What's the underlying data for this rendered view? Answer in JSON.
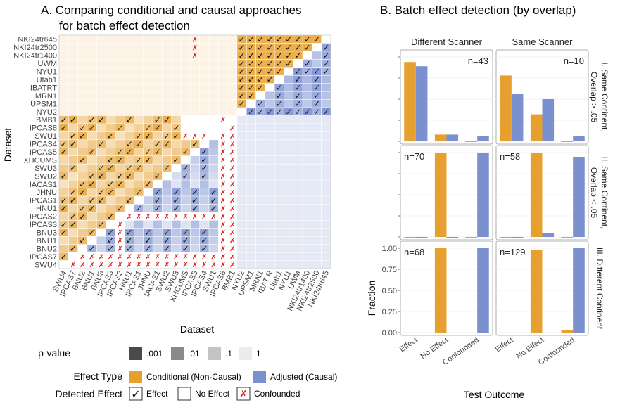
{
  "colors": {
    "conditional": "#E5A02F",
    "adjusted": "#7B90CF",
    "confounded_mark": "#D62020",
    "panel_border": "#9a9a9a",
    "grid": "#e6e6e6"
  },
  "panelA": {
    "title_line1": "A. Comparing conditional and causal approaches",
    "title_line2": "for batch effect detection",
    "xlabel": "Dataset",
    "ylabel": "Dataset",
    "legend": {
      "pvalue_title": "p-value",
      "pvalue_levels": [
        ".001",
        ".01",
        ".1",
        "1"
      ],
      "effect_type_title": "Effect Type",
      "effect_types": [
        "Conditional (Non-Causal)",
        "Adjusted (Causal)"
      ],
      "detected_title": "Detected Effect",
      "detected_items": [
        "Effect",
        "No Effect",
        "Confounded"
      ]
    }
  },
  "chart_data": [
    {
      "type": "heatmap",
      "title": "A. Comparing conditional and causal approaches for batch effect detection",
      "xlabel": "Dataset",
      "ylabel": "Dataset",
      "datasets": [
        "SWU4",
        "IPCAS7",
        "BNU2",
        "BNU1",
        "BNU3",
        "IPCAS3",
        "IPCAS2",
        "HNU1",
        "IPCAS1",
        "JHNU",
        "IACAS1",
        "SWU2",
        "SWU3",
        "XHCUMS",
        "IPCAS5",
        "IPCAS4",
        "SWU1",
        "IPCAS8",
        "BMB1",
        "NYU2",
        "UPSM1",
        "MRN1",
        "IBATRT",
        "Utah1",
        "NYU1",
        "UWM",
        "NKI24tr1400",
        "NKI24tr2500",
        "NKI24tr645"
      ],
      "x_tick_labels": [
        "SWU4",
        "IPCAS7",
        "BNU2",
        "BNU1",
        "BNU3",
        "IPCAS3",
        "IPCAS2",
        "HNU1",
        "IPCAS1",
        "JHNU",
        "IACAS1",
        "SWU2",
        "SWU3",
        "XHCUMS",
        "IPCAS5",
        "IPCAS4",
        "SWU1",
        "IPCAS8",
        "BMB1",
        "NYU2",
        "UPSM1",
        "MRN1",
        "IBAT R",
        "Utah1",
        "NYU1",
        "UWM",
        "NKI24tr1400",
        "NKI24tr2500",
        "NKI24tr645"
      ],
      "y_tick_labels_top_to_bottom": [
        "NKI24tr645",
        "NKI24tr2500",
        "NKI24tr1400",
        "UWM",
        "NYU1",
        "Utah1",
        "IBATRT",
        "MRN1",
        "UPSM1",
        "NYU2",
        "BMB1",
        "IPCAS8",
        "SWU1",
        "IPCAS4",
        "IPCAS5",
        "XHCUMS",
        "SWU3",
        "SWU2",
        "IACAS1",
        "JHNU",
        "IPCAS1",
        "HNU1",
        "IPCAS2",
        "IPCAS3",
        "BNU3",
        "BNU1",
        "BNU2",
        "IPCAS7",
        "SWU4"
      ],
      "upper_triangle": "Conditional (Non-Causal)",
      "lower_triangle": "Adjusted (Causal)",
      "cell_states": {
        "effect": "check mark",
        "no_effect": "blank",
        "confounded": "red x"
      }
    },
    {
      "type": "bar",
      "title": "B. Batch effect detection (by overlap)",
      "xlabel": "Test Outcome",
      "ylabel": "Fraction",
      "categories": [
        "Effect",
        "No Effect",
        "Confounded"
      ],
      "series_names": [
        "Conditional (Non-Causal)",
        "Adjusted (Causal)"
      ],
      "ylim": [
        0,
        1.05
      ],
      "yticks": [
        0.0,
        0.25,
        0.5,
        0.75,
        1.0
      ],
      "ytick_labels": [
        "0.00",
        "0.25",
        "0.50",
        "0.75",
        "1.00"
      ],
      "facet_columns": [
        "Different Scanner",
        "Same Scanner"
      ],
      "facet_rows": [
        "I. Same Continent, Overlap > .05",
        "II. Same Continent, Overlap < .05",
        "III. Different Continent"
      ],
      "panels": [
        {
          "row": 0,
          "col": 0,
          "n": "n=43",
          "conditional": [
            0.94,
            0.08,
            0.0
          ],
          "adjusted": [
            0.89,
            0.08,
            0.06
          ]
        },
        {
          "row": 0,
          "col": 1,
          "n": "n=10",
          "conditional": [
            0.78,
            0.32,
            0.0
          ],
          "adjusted": [
            0.56,
            0.5,
            0.06
          ]
        },
        {
          "row": 1,
          "col": 0,
          "n": "n=70",
          "conditional": [
            0.0,
            1.0,
            0.0
          ],
          "adjusted": [
            0.0,
            0.0,
            1.0
          ]
        },
        {
          "row": 1,
          "col": 1,
          "n": "n=58",
          "conditional": [
            0.0,
            1.0,
            0.0
          ],
          "adjusted": [
            0.0,
            0.05,
            0.95
          ]
        },
        {
          "row": 2,
          "col": 0,
          "n": "n=68",
          "conditional": [
            0.0,
            1.0,
            0.0
          ],
          "adjusted": [
            0.0,
            0.0,
            1.0
          ]
        },
        {
          "row": 2,
          "col": 1,
          "n": "n=129",
          "conditional": [
            0.0,
            0.98,
            0.03
          ],
          "adjusted": [
            0.0,
            0.0,
            1.0
          ]
        }
      ]
    }
  ],
  "panelB": {
    "title": "B. Batch effect detection (by overlap)",
    "xlabel": "Test Outcome",
    "ylabel": "Fraction",
    "facet_columns": [
      "Different Scanner",
      "Same Scanner"
    ],
    "facet_rows": [
      [
        "I. Same Continent,",
        "Overlap > .05"
      ],
      [
        "II. Same Continent,",
        "Overlap < .05"
      ],
      [
        "III. Different Continent"
      ]
    ]
  }
}
